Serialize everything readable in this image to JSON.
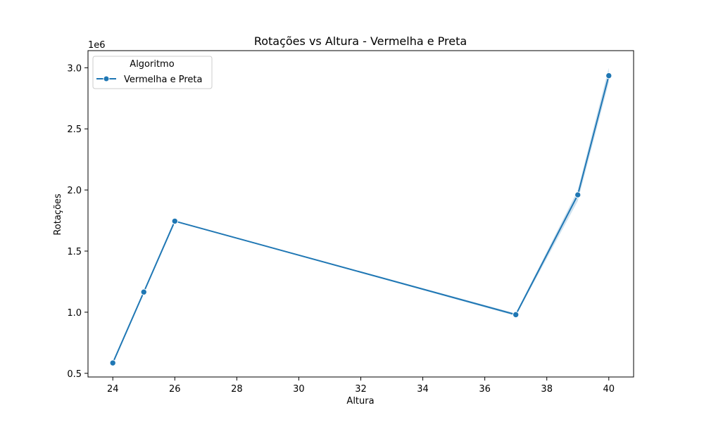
{
  "chart_data": {
    "type": "line",
    "title": "Rotações vs Altura - Vermelha e Preta",
    "xlabel": "Altura",
    "ylabel": "Rotações",
    "y_offset_label": "1e6",
    "xlim": [
      23.2,
      40.8
    ],
    "ylim": [
      0.47,
      3.14
    ],
    "x_ticks": [
      24,
      26,
      28,
      30,
      32,
      34,
      36,
      38,
      40
    ],
    "x_tick_labels": [
      "24",
      "26",
      "28",
      "30",
      "32",
      "34",
      "36",
      "38",
      "40"
    ],
    "y_ticks": [
      0.5,
      1.0,
      1.5,
      2.0,
      2.5,
      3.0
    ],
    "y_tick_labels": [
      "0.5",
      "1.0",
      "1.5",
      "2.0",
      "2.5",
      "3.0"
    ],
    "grid": false,
    "legend": {
      "title": "Algoritmo",
      "placement": "upper-left"
    },
    "series": [
      {
        "name": "Vermelha e Preta",
        "color": "#1f77b4",
        "x": [
          24,
          25,
          26,
          37,
          39,
          40
        ],
        "y": [
          0.585,
          1.165,
          1.745,
          0.98,
          1.96,
          2.935
        ],
        "ci_low": [
          0.585,
          1.165,
          1.745,
          0.97,
          1.91,
          2.88
        ],
        "ci_high": [
          0.585,
          1.165,
          1.745,
          0.99,
          2.0,
          3.0
        ]
      }
    ]
  }
}
